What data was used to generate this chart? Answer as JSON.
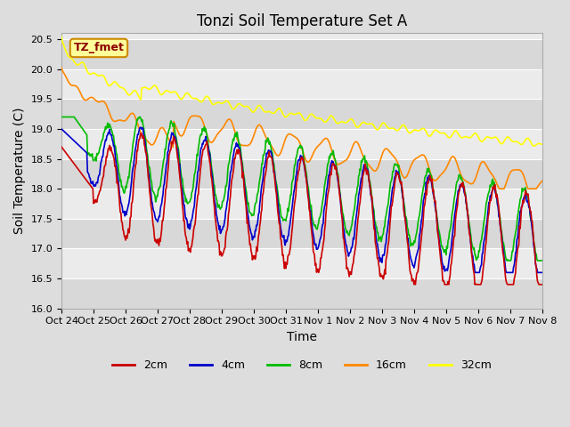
{
  "title": "Tonzi Soil Temperature Set A",
  "xlabel": "Time",
  "ylabel": "Soil Temperature (C)",
  "ylim": [
    16.0,
    20.6
  ],
  "yticks": [
    16.0,
    16.5,
    17.0,
    17.5,
    18.0,
    18.5,
    19.0,
    19.5,
    20.0,
    20.5
  ],
  "xtick_labels": [
    "Oct 24",
    "Oct 25",
    "Oct 26",
    "Oct 27",
    "Oct 28",
    "Oct 29",
    "Oct 30",
    "Oct 31",
    "Nov 1",
    "Nov 2",
    "Nov 3",
    "Nov 4",
    "Nov 5",
    "Nov 6",
    "Nov 7",
    "Nov 8"
  ],
  "series_colors": {
    "2cm": "#cc0000",
    "4cm": "#0000cc",
    "8cm": "#00bb00",
    "16cm": "#ff8800",
    "32cm": "#ffff00"
  },
  "annotation_text": "TZ_fmet",
  "annotation_bg": "#ffff99",
  "annotation_border": "#cc8800",
  "background_outer": "#dddddd",
  "background_inner": "#ebebeb",
  "grid_color": "#ffffff",
  "band_color": "#d8d8d8",
  "title_fontsize": 12,
  "axis_label_fontsize": 10,
  "tick_fontsize": 8,
  "legend_fontsize": 9
}
